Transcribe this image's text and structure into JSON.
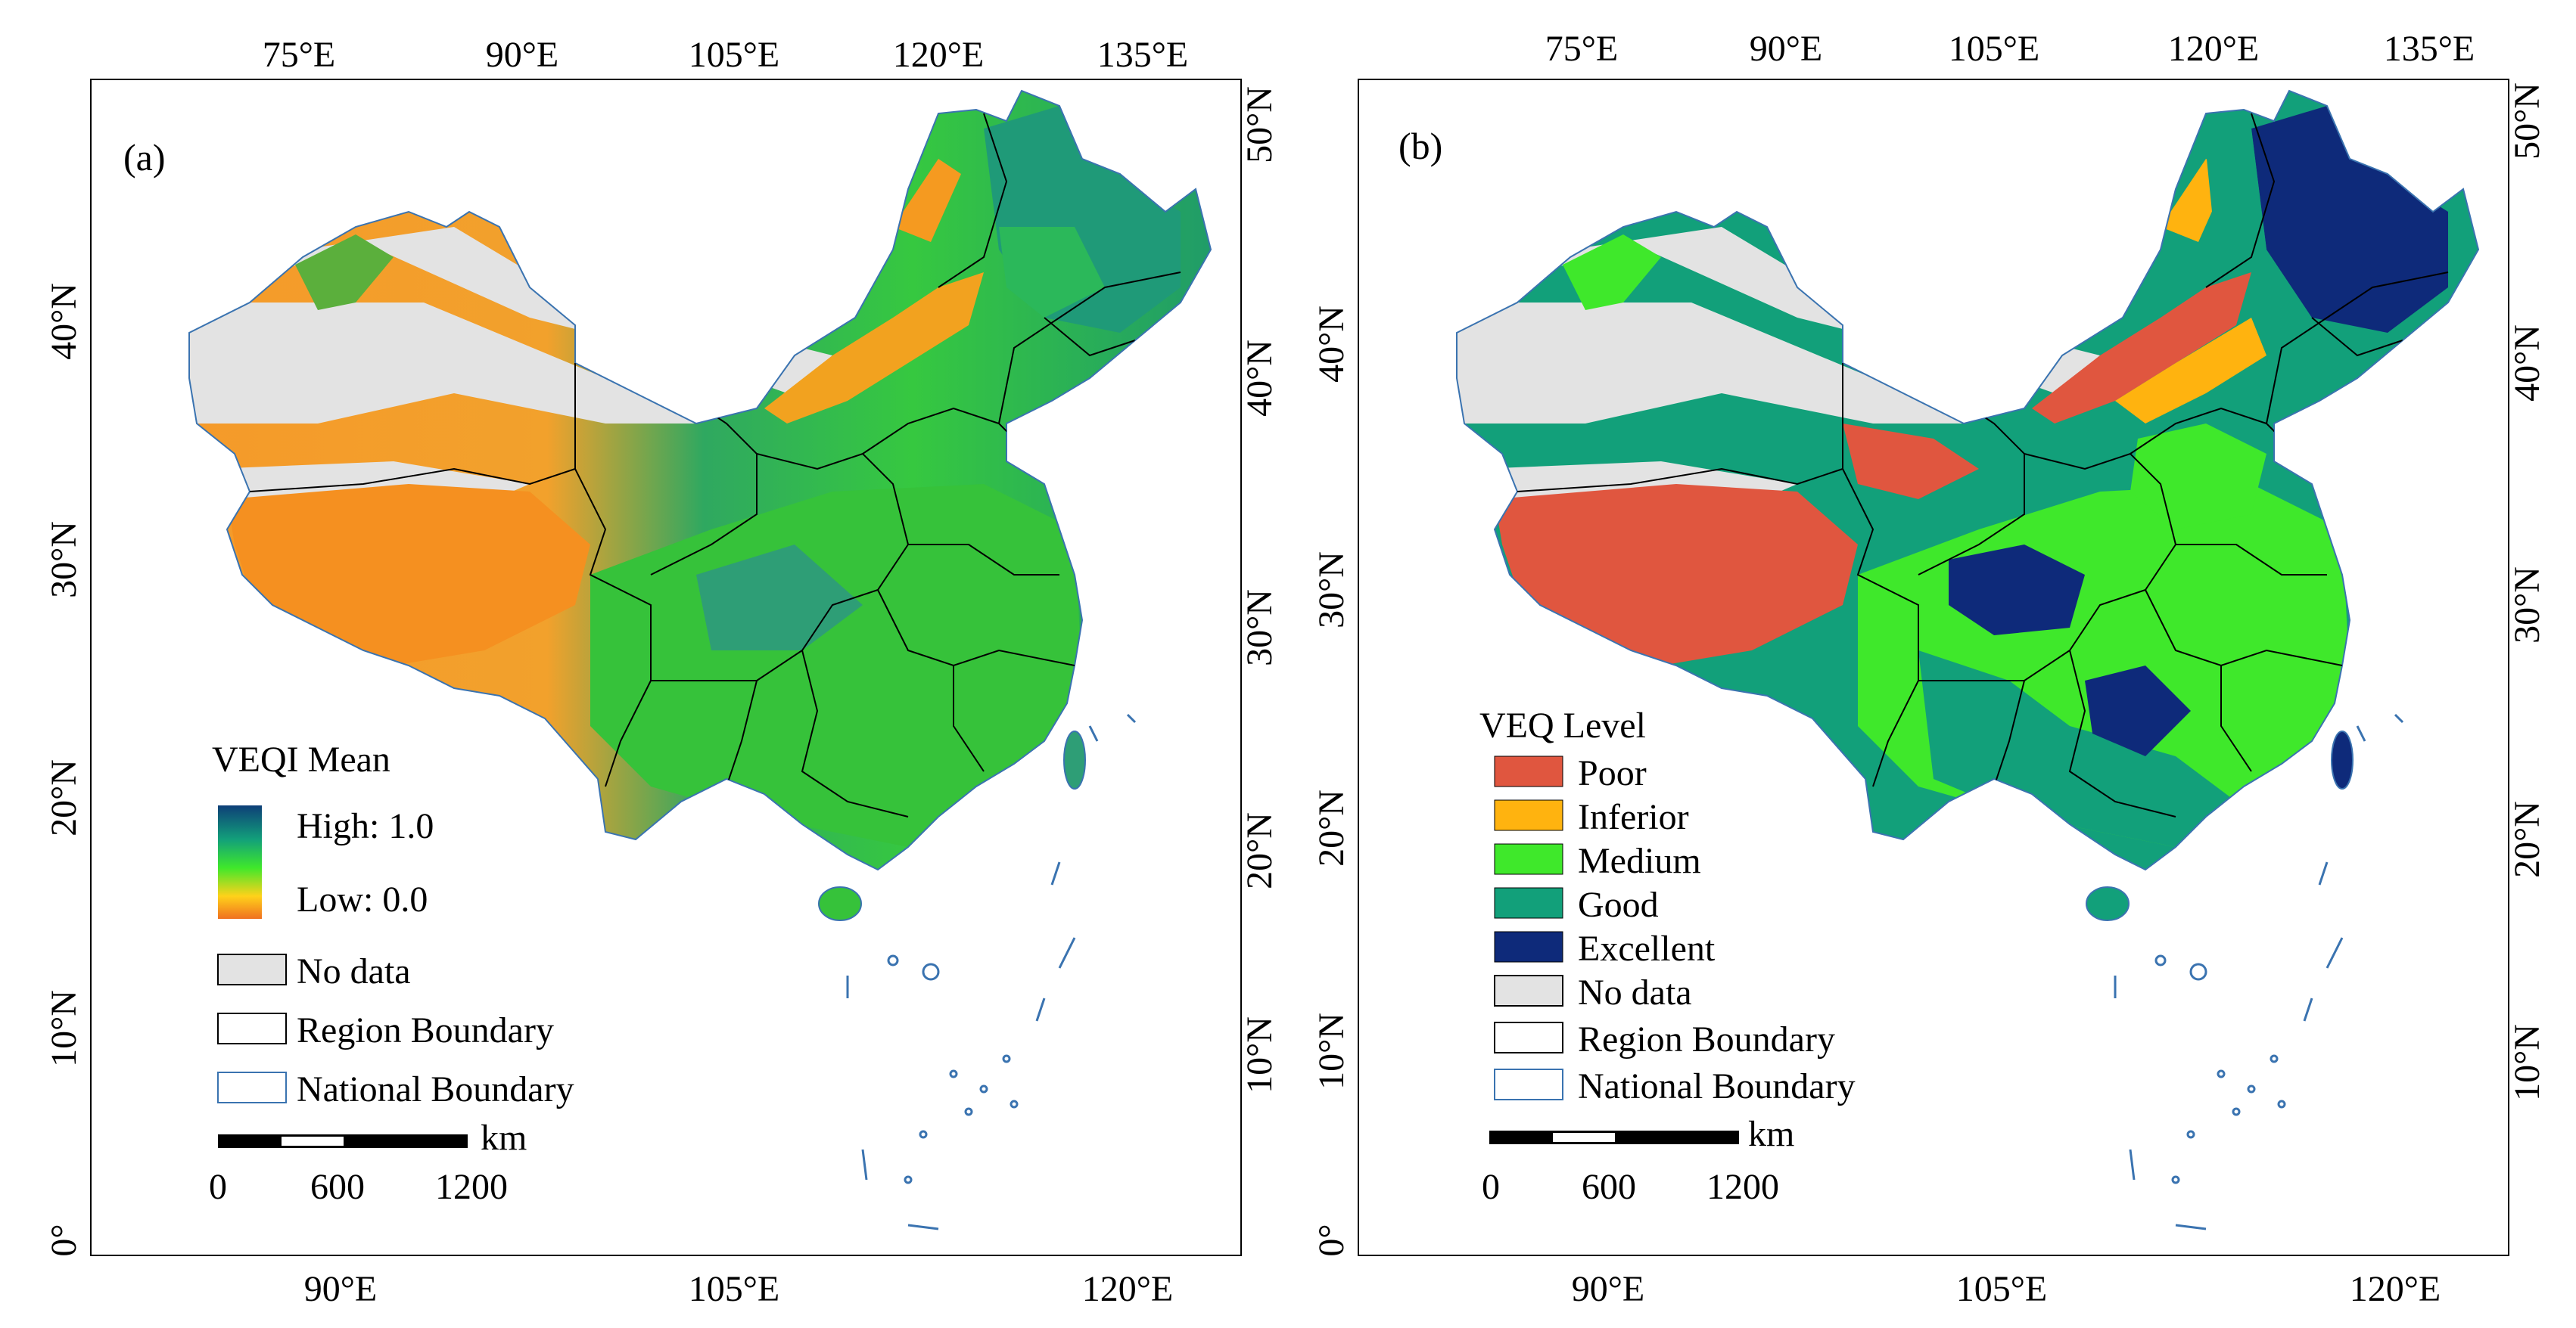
{
  "panel_a": {
    "label": "(a)",
    "top_ticks": [
      "75°E",
      "90°E",
      "105°E",
      "120°E",
      "135°E"
    ],
    "bottom_ticks": [
      "90°E",
      "105°E",
      "120°E"
    ],
    "left_ticks": [
      "40°N",
      "30°N",
      "20°N",
      "10°N",
      "0°"
    ],
    "right_ticks": [
      "50°N",
      "40°N",
      "30°N",
      "20°N",
      "10°N"
    ],
    "legend": {
      "title": "VEQI  Mean",
      "high": "High: 1.0",
      "low": "Low: 0.0",
      "no_data": "No data",
      "region_boundary": "Region Boundary",
      "national_boundary": "National Boundary"
    },
    "scale": {
      "unit": "km",
      "labels": [
        "0",
        "600",
        "1200"
      ]
    }
  },
  "panel_b": {
    "label": "(b)",
    "top_ticks": [
      "75°E",
      "90°E",
      "105°E",
      "120°E",
      "135°E"
    ],
    "bottom_ticks": [
      "90°E",
      "105°E",
      "120°E"
    ],
    "left_ticks": [
      "40°N",
      "30°N",
      "20°N",
      "10°N",
      "0°"
    ],
    "right_ticks": [
      "50°N",
      "40°N",
      "30°N",
      "20°N",
      "10°N"
    ],
    "legend": {
      "title": "VEQ  Level",
      "classes": [
        {
          "label": "Poor",
          "color": "#E0563F"
        },
        {
          "label": "Inferior",
          "color": "#FFB30F"
        },
        {
          "label": "Medium",
          "color": "#3FE82B"
        },
        {
          "label": "Good",
          "color": "#12A07A"
        },
        {
          "label": "Excellent",
          "color": "#0E2A7A"
        }
      ],
      "no_data": "No data",
      "region_boundary": "Region Boundary",
      "national_boundary": "National Boundary"
    },
    "scale": {
      "unit": "km",
      "labels": [
        "0",
        "600",
        "1200"
      ]
    }
  },
  "colors": {
    "no_data": "#E3E3E3",
    "national_boundary": "#3A73B0",
    "region_boundary": "#000000",
    "gradient": [
      "#0E3F78",
      "#12A07A",
      "#3FE82B",
      "#FFD21A",
      "#F07020"
    ]
  }
}
